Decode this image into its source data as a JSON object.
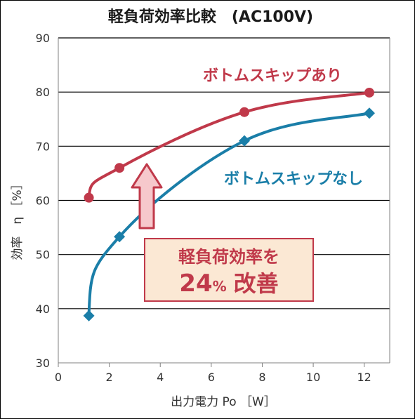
{
  "chart_data": {
    "type": "line",
    "title": "軽負荷効率比較　(AC100V)",
    "xlabel": "出力電力 Po ［W］",
    "ylabel": "効率　η ［%］",
    "xlim": [
      0,
      13
    ],
    "ylim": [
      30,
      90
    ],
    "x_ticks": [
      "0",
      "2",
      "4",
      "6",
      "8",
      "10",
      "12"
    ],
    "y_ticks": [
      "30",
      "40",
      "50",
      "60",
      "70",
      "80",
      "90"
    ],
    "grid": "horizontal",
    "series": [
      {
        "name": "ボトムスキップあり",
        "color": "#c0394a",
        "marker": "circle",
        "x": [
          1.2,
          2.4,
          7.3,
          12.2
        ],
        "y": [
          60.5,
          66.0,
          76.3,
          79.9
        ]
      },
      {
        "name": "ボトムスキップなし",
        "color": "#1a7ea8",
        "marker": "diamond",
        "x": [
          1.2,
          2.4,
          7.3,
          12.2
        ],
        "y": [
          38.7,
          53.3,
          71.0,
          76.1
        ]
      }
    ],
    "annotation": {
      "line1": "軽負荷効率を",
      "value": "24",
      "unit": "%",
      "word": "改善"
    }
  }
}
